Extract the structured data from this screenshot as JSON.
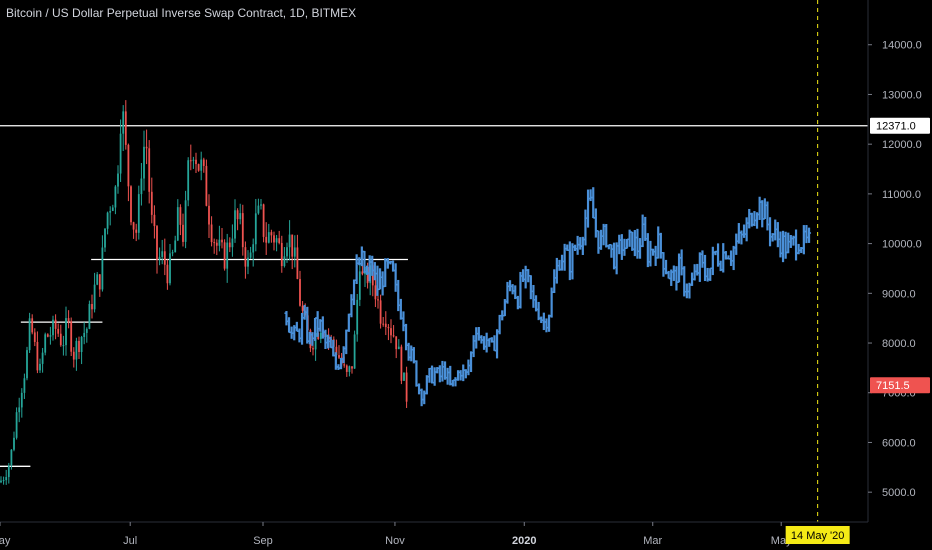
{
  "chart_data": {
    "type": "candlestick",
    "title": "Bitcoin / US Dollar Perpetual Inverse Swap Contract, 1D, BITMEX",
    "ylim": [
      4400,
      14900
    ],
    "y_ticks": [
      5000,
      6000,
      7000,
      8000,
      9000,
      10000,
      11000,
      12000,
      13000,
      14000
    ],
    "y_tick_labels": [
      "5000.0",
      "6000.0",
      "7000.0",
      "8000.0",
      "9000.0",
      "10000.0",
      "11000.0",
      "12000.0",
      "13000.0",
      "14000.0"
    ],
    "x_labels": [
      "May",
      "Jul",
      "Sep",
      "Nov",
      "2020",
      "Mar",
      "May"
    ],
    "x_labels_bold": [
      "2020"
    ],
    "price_labels": [
      {
        "value": 12371,
        "text": "12371.0",
        "color": "#ffffff",
        "text_color": "#000000"
      },
      {
        "value": 7151.5,
        "text": "7151.5",
        "color": "#ef5350",
        "text_color": "#ffffff"
      }
    ],
    "horizontal_lines": [
      {
        "value": 12371,
        "x_from": 0,
        "x_to": 1
      },
      {
        "value": 9680,
        "x_from": 0.105,
        "x_to": 0.47
      },
      {
        "value": 8420,
        "x_from": 0.024,
        "x_to": 0.118
      },
      {
        "value": 5520,
        "x_from": 0,
        "x_to": 0.035
      }
    ],
    "vertical_marker": {
      "label": "14 May '20",
      "color": "#f5ea16",
      "position": 0.942
    },
    "series": [
      {
        "name": "",
        "kind": "ohlc_path",
        "up_color": "#26a69a",
        "down_color": "#ef5350",
        "x_range": [
          0,
          0.47
        ],
        "path": [
          [
            0.0,
            5200
          ],
          [
            0.005,
            5350
          ],
          [
            0.012,
            5650
          ],
          [
            0.02,
            6700
          ],
          [
            0.03,
            7600
          ],
          [
            0.035,
            8400
          ],
          [
            0.04,
            7900
          ],
          [
            0.046,
            7400
          ],
          [
            0.052,
            8100
          ],
          [
            0.058,
            8200
          ],
          [
            0.065,
            8300
          ],
          [
            0.072,
            8000
          ],
          [
            0.078,
            8400
          ],
          [
            0.085,
            7800
          ],
          [
            0.092,
            8100
          ],
          [
            0.1,
            8300
          ],
          [
            0.108,
            9050
          ],
          [
            0.116,
            9350
          ],
          [
            0.122,
            10500
          ],
          [
            0.128,
            10900
          ],
          [
            0.134,
            11100
          ],
          [
            0.14,
            12900
          ],
          [
            0.146,
            11600
          ],
          [
            0.152,
            10500
          ],
          [
            0.158,
            10200
          ],
          [
            0.163,
            11600
          ],
          [
            0.168,
            12200
          ],
          [
            0.174,
            10500
          ],
          [
            0.181,
            9700
          ],
          [
            0.188,
            9700
          ],
          [
            0.194,
            9400
          ],
          [
            0.2,
            9800
          ],
          [
            0.206,
            10600
          ],
          [
            0.212,
            10100
          ],
          [
            0.217,
            11500
          ],
          [
            0.223,
            12000
          ],
          [
            0.228,
            11600
          ],
          [
            0.233,
            11500
          ],
          [
            0.239,
            10800
          ],
          [
            0.245,
            10200
          ],
          [
            0.251,
            9900
          ],
          [
            0.258,
            9700
          ],
          [
            0.264,
            10000
          ],
          [
            0.27,
            10500
          ],
          [
            0.276,
            10400
          ],
          [
            0.282,
            9800
          ],
          [
            0.287,
            9500
          ],
          [
            0.293,
            10400
          ],
          [
            0.3,
            10600
          ],
          [
            0.306,
            10100
          ],
          [
            0.312,
            10200
          ],
          [
            0.318,
            10100
          ],
          [
            0.324,
            9800
          ],
          [
            0.33,
            10200
          ],
          [
            0.336,
            10000
          ],
          [
            0.34,
            9600
          ],
          [
            0.346,
            8800
          ],
          [
            0.352,
            8300
          ],
          [
            0.358,
            8000
          ],
          [
            0.364,
            8200
          ],
          [
            0.37,
            8400
          ],
          [
            0.376,
            8200
          ],
          [
            0.381,
            8000
          ],
          [
            0.387,
            7900
          ],
          [
            0.393,
            7600
          ],
          [
            0.399,
            7300
          ],
          [
            0.405,
            7500
          ],
          [
            0.41,
            8300
          ],
          [
            0.414,
            9800
          ],
          [
            0.418,
            9200
          ],
          [
            0.425,
            9400
          ],
          [
            0.432,
            9100
          ],
          [
            0.438,
            8600
          ],
          [
            0.444,
            8600
          ],
          [
            0.45,
            8300
          ],
          [
            0.456,
            8100
          ],
          [
            0.463,
            7400
          ],
          [
            0.47,
            6800
          ]
        ]
      },
      {
        "name": "",
        "kind": "bar_path",
        "color": "#4a90d9",
        "x_range": [
          0.33,
          0.935
        ],
        "path": [
          [
            0.33,
            8600
          ],
          [
            0.337,
            8100
          ],
          [
            0.344,
            8200
          ],
          [
            0.35,
            8500
          ],
          [
            0.356,
            8000
          ],
          [
            0.362,
            8300
          ],
          [
            0.368,
            8400
          ],
          [
            0.374,
            8000
          ],
          [
            0.38,
            7900
          ],
          [
            0.386,
            7500
          ],
          [
            0.392,
            7700
          ],
          [
            0.398,
            8200
          ],
          [
            0.404,
            9000
          ],
          [
            0.41,
            9400
          ],
          [
            0.416,
            9700
          ],
          [
            0.422,
            9300
          ],
          [
            0.428,
            9600
          ],
          [
            0.434,
            9100
          ],
          [
            0.44,
            9300
          ],
          [
            0.446,
            9500
          ],
          [
            0.452,
            9400
          ],
          [
            0.458,
            8800
          ],
          [
            0.464,
            8600
          ],
          [
            0.47,
            7900
          ],
          [
            0.476,
            7600
          ],
          [
            0.482,
            7100
          ],
          [
            0.488,
            7000
          ],
          [
            0.494,
            7300
          ],
          [
            0.5,
            7400
          ],
          [
            0.506,
            7300
          ],
          [
            0.512,
            7500
          ],
          [
            0.518,
            7100
          ],
          [
            0.524,
            7200
          ],
          [
            0.53,
            7500
          ],
          [
            0.536,
            7300
          ],
          [
            0.542,
            7700
          ],
          [
            0.548,
            8400
          ],
          [
            0.554,
            8000
          ],
          [
            0.56,
            8100
          ],
          [
            0.566,
            7800
          ],
          [
            0.572,
            8200
          ],
          [
            0.578,
            8600
          ],
          [
            0.584,
            9000
          ],
          [
            0.59,
            9200
          ],
          [
            0.596,
            8900
          ],
          [
            0.602,
            9300
          ],
          [
            0.608,
            9200
          ],
          [
            0.614,
            8800
          ],
          [
            0.62,
            8700
          ],
          [
            0.626,
            8400
          ],
          [
            0.632,
            8600
          ],
          [
            0.638,
            9200
          ],
          [
            0.644,
            9700
          ],
          [
            0.65,
            9800
          ],
          [
            0.656,
            9600
          ],
          [
            0.662,
            9900
          ],
          [
            0.668,
            10100
          ],
          [
            0.674,
            10500
          ],
          [
            0.68,
            10800
          ],
          [
            0.686,
            10300
          ],
          [
            0.692,
            10000
          ],
          [
            0.698,
            10200
          ],
          [
            0.704,
            9800
          ],
          [
            0.71,
            9700
          ],
          [
            0.716,
            10000
          ],
          [
            0.722,
            9900
          ],
          [
            0.728,
            10100
          ],
          [
            0.734,
            9900
          ],
          [
            0.74,
            10200
          ],
          [
            0.746,
            9800
          ],
          [
            0.752,
            9900
          ],
          [
            0.758,
            10000
          ],
          [
            0.764,
            9700
          ],
          [
            0.77,
            9400
          ],
          [
            0.776,
            9300
          ],
          [
            0.782,
            9500
          ],
          [
            0.788,
            9200
          ],
          [
            0.794,
            9100
          ],
          [
            0.8,
            9300
          ],
          [
            0.806,
            9600
          ],
          [
            0.812,
            9400
          ],
          [
            0.818,
            9500
          ],
          [
            0.824,
            9800
          ],
          [
            0.83,
            9700
          ],
          [
            0.836,
            9900
          ],
          [
            0.842,
            9800
          ],
          [
            0.848,
            10000
          ],
          [
            0.854,
            10100
          ],
          [
            0.86,
            10300
          ],
          [
            0.866,
            10600
          ],
          [
            0.872,
            10800
          ],
          [
            0.878,
            10700
          ],
          [
            0.884,
            10400
          ],
          [
            0.89,
            10200
          ],
          [
            0.896,
            10100
          ],
          [
            0.902,
            10000
          ],
          [
            0.908,
            9900
          ],
          [
            0.914,
            10000
          ],
          [
            0.92,
            10100
          ],
          [
            0.926,
            10000
          ],
          [
            0.932,
            10000
          ]
        ]
      }
    ]
  }
}
